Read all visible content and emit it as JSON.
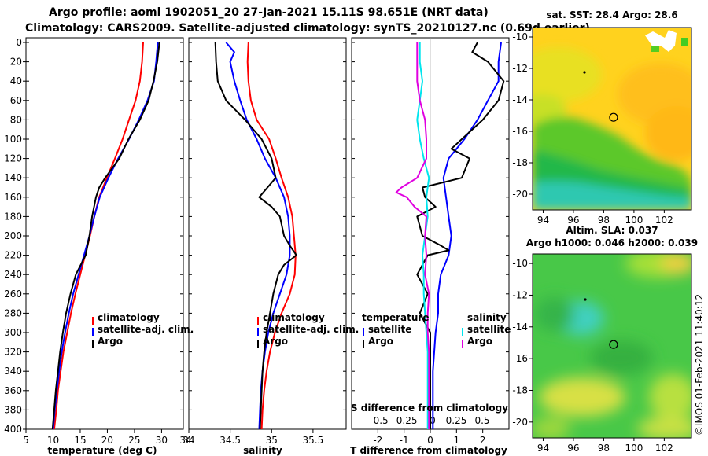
{
  "header": {
    "line1": "Argo profile: aoml 1902051_20 27-Jan-2021 15.11S 98.651E (NRT data)",
    "line2": "Climatology: CARS2009. Satellite-adjusted climatology: synTS_20210127.nc (0.69d earlier)"
  },
  "colors": {
    "climatology": "#ff0000",
    "satellite": "#0000ff",
    "argo": "#000000",
    "sat_salt": "#00e5ee",
    "argo_salt": "#e000e0"
  },
  "watermark": "©IMOS 01-Feb-2021 11:40:12",
  "chart_data": [
    {
      "type": "line",
      "name": "temperature",
      "xlabel": "temperature (deg C)",
      "ylabel": "",
      "xlim": [
        5,
        34
      ],
      "ylim": [
        400,
        0
      ],
      "xticks": [
        5,
        10,
        15,
        20,
        25,
        30
      ],
      "yticks": [
        0,
        20,
        40,
        60,
        80,
        100,
        120,
        140,
        160,
        180,
        200,
        220,
        240,
        260,
        280,
        300,
        320,
        340,
        360,
        380,
        400
      ],
      "legend": [
        "climatology",
        "satellite-adj. clim.",
        "Argo"
      ],
      "series": [
        {
          "name": "climatology",
          "depth": [
            0,
            20,
            40,
            60,
            80,
            100,
            120,
            140,
            160,
            180,
            200,
            220,
            240,
            260,
            280,
            300,
            320,
            340,
            360,
            380,
            400
          ],
          "values": [
            26.6,
            26.4,
            26.0,
            25.2,
            24.0,
            22.8,
            21.4,
            19.9,
            18.5,
            17.6,
            16.8,
            15.9,
            15.0,
            14.1,
            13.3,
            12.6,
            11.9,
            11.4,
            10.9,
            10.6,
            10.2
          ]
        },
        {
          "name": "satellite-adj. clim.",
          "depth": [
            0,
            20,
            40,
            60,
            80,
            100,
            120,
            140,
            160,
            180,
            200,
            220,
            240,
            260,
            280,
            300,
            320,
            340,
            360,
            380,
            400
          ],
          "values": [
            29.3,
            29.0,
            28.6,
            27.4,
            25.8,
            24.0,
            22.0,
            20.2,
            18.6,
            17.6,
            16.7,
            15.7,
            14.7,
            13.7,
            12.9,
            12.2,
            11.6,
            11.1,
            10.7,
            10.3,
            10.0
          ]
        },
        {
          "name": "Argo",
          "depth": [
            0,
            10,
            20,
            40,
            60,
            80,
            100,
            120,
            140,
            150,
            160,
            180,
            200,
            220,
            240,
            260,
            280,
            300,
            320,
            340,
            360,
            380,
            400
          ],
          "values": [
            29.6,
            29.4,
            29.2,
            28.5,
            27.6,
            26.0,
            23.9,
            22.2,
            19.6,
            18.5,
            17.9,
            17.2,
            16.7,
            16.0,
            14.2,
            13.2,
            12.4,
            11.8,
            11.3,
            10.9,
            10.5,
            10.2,
            9.9
          ]
        }
      ]
    },
    {
      "type": "line",
      "name": "salinity",
      "xlabel": "salinity",
      "ylabel": "",
      "xlim": [
        34,
        35.9
      ],
      "ylim": [
        400,
        0
      ],
      "xticks": [
        34,
        34.5,
        35,
        35.5
      ],
      "legend": [
        "climatology",
        "satellite-adj. clim.",
        "Argo"
      ],
      "series": [
        {
          "name": "climatology",
          "depth": [
            0,
            20,
            40,
            60,
            80,
            100,
            120,
            140,
            160,
            180,
            200,
            220,
            240,
            260,
            280,
            300,
            320,
            340,
            360,
            380,
            400
          ],
          "values": [
            34.72,
            34.71,
            34.72,
            34.75,
            34.82,
            34.97,
            35.05,
            35.12,
            35.2,
            35.25,
            35.27,
            35.29,
            35.28,
            35.22,
            35.12,
            35.04,
            34.98,
            34.94,
            34.91,
            34.89,
            34.88
          ]
        },
        {
          "name": "satellite-adj. clim.",
          "depth": [
            0,
            10,
            20,
            40,
            60,
            80,
            100,
            120,
            140,
            160,
            180,
            200,
            220,
            240,
            260,
            280,
            300,
            320,
            340,
            360,
            380,
            400
          ],
          "values": [
            34.45,
            34.55,
            34.5,
            34.55,
            34.62,
            34.7,
            34.82,
            34.92,
            35.05,
            35.15,
            35.2,
            35.22,
            35.22,
            35.18,
            35.1,
            35.02,
            34.96,
            34.92,
            34.89,
            34.87,
            34.86,
            34.85
          ]
        },
        {
          "name": "Argo",
          "depth": [
            0,
            20,
            40,
            60,
            80,
            100,
            120,
            140,
            150,
            160,
            170,
            180,
            200,
            210,
            220,
            230,
            240,
            260,
            280,
            300,
            320,
            340,
            360,
            380,
            400
          ],
          "values": [
            34.32,
            34.33,
            34.35,
            34.45,
            34.68,
            34.88,
            35.0,
            35.05,
            34.95,
            34.85,
            35.0,
            35.1,
            35.15,
            35.22,
            35.3,
            35.15,
            35.08,
            35.02,
            34.98,
            34.94,
            34.91,
            34.89,
            34.88,
            34.87,
            34.86
          ]
        }
      ]
    },
    {
      "type": "line",
      "name": "difference",
      "xlabel": "T difference from climatology",
      "xlabel_top": "S difference from climatology",
      "xlim": [
        -3,
        3
      ],
      "ylim": [
        400,
        0
      ],
      "xticks": [
        -2,
        -1,
        0,
        1,
        2
      ],
      "xticks_top": [
        -0.5,
        -0.25,
        0,
        0.25,
        0.5
      ],
      "legend_titles": [
        "temperature",
        "salinity"
      ],
      "legend": [
        "satellite",
        "Argo",
        "satellite",
        "Argo"
      ],
      "series": [
        {
          "name": "temperature satellite",
          "depth": [
            0,
            20,
            40,
            60,
            80,
            100,
            120,
            140,
            160,
            180,
            200,
            220,
            240,
            260,
            280,
            300,
            320,
            340,
            360,
            380,
            400
          ],
          "values": [
            2.7,
            2.6,
            2.6,
            2.2,
            1.8,
            1.3,
            0.7,
            0.5,
            0.6,
            0.7,
            0.8,
            0.7,
            0.4,
            0.3,
            0.3,
            0.2,
            0.15,
            0.1,
            0.1,
            0.1,
            0.1
          ]
        },
        {
          "name": "temperature Argo",
          "depth": [
            0,
            10,
            20,
            40,
            60,
            80,
            100,
            110,
            120,
            140,
            150,
            160,
            170,
            180,
            200,
            210,
            215,
            220,
            240,
            260,
            280,
            300,
            320,
            340,
            360,
            380,
            400
          ],
          "values": [
            1.8,
            1.6,
            2.2,
            2.8,
            2.6,
            2.0,
            1.2,
            0.8,
            1.5,
            1.2,
            -0.3,
            -0.2,
            0.2,
            -0.5,
            -0.3,
            0.4,
            0.7,
            -0.1,
            -0.5,
            -0.1,
            -0.4,
            0.0,
            0.0,
            0.0,
            0.0,
            0.0,
            0.0
          ]
        },
        {
          "name": "salinity satellite",
          "depth": [
            0,
            20,
            40,
            60,
            80,
            100,
            120,
            140,
            160,
            180,
            200,
            220,
            240,
            260,
            280,
            300,
            320,
            340,
            360,
            380,
            400
          ],
          "values": [
            -0.08,
            -0.08,
            -0.06,
            -0.08,
            -0.1,
            -0.08,
            -0.05,
            -0.01,
            -0.03,
            -0.02,
            -0.04,
            -0.06,
            -0.05,
            -0.05,
            -0.04,
            -0.03,
            -0.02,
            -0.02,
            -0.02,
            -0.02,
            -0.02
          ]
        },
        {
          "name": "salinity Argo",
          "depth": [
            0,
            20,
            40,
            60,
            80,
            100,
            120,
            140,
            150,
            155,
            160,
            170,
            180,
            200,
            220,
            240,
            260,
            280,
            300,
            320,
            340,
            360,
            380,
            400
          ],
          "values": [
            -0.1,
            -0.1,
            -0.1,
            -0.08,
            -0.04,
            -0.03,
            -0.03,
            -0.1,
            -0.22,
            -0.26,
            -0.18,
            -0.12,
            -0.03,
            -0.04,
            -0.03,
            -0.04,
            -0.01,
            -0.02,
            -0.02,
            -0.01,
            -0.01,
            -0.01,
            -0.01,
            -0.01
          ]
        }
      ]
    },
    {
      "type": "heatmap",
      "name": "sst_map",
      "title": "sat. SST: 28.4 Argo: 28.6",
      "xticks": [
        94,
        96,
        98,
        100,
        102
      ],
      "yticks": [
        -10,
        -12,
        -14,
        -16,
        -18,
        -20
      ],
      "xlim": [
        93.3,
        103.8
      ],
      "ylim": [
        -21.0,
        -9.4
      ],
      "argo_position": [
        98.651,
        -15.11
      ]
    },
    {
      "type": "heatmap",
      "name": "sla_map",
      "title1": "Altim. SLA: 0.037",
      "title2": "Argo h1000: 0.046 h2000: 0.039",
      "xticks": [
        94,
        96,
        98,
        100,
        102
      ],
      "yticks": [
        -10,
        -12,
        -14,
        -16,
        -18,
        -20
      ],
      "xlim": [
        93.3,
        103.8
      ],
      "ylim": [
        -21.0,
        -9.4
      ],
      "argo_position": [
        98.651,
        -15.11
      ]
    }
  ]
}
